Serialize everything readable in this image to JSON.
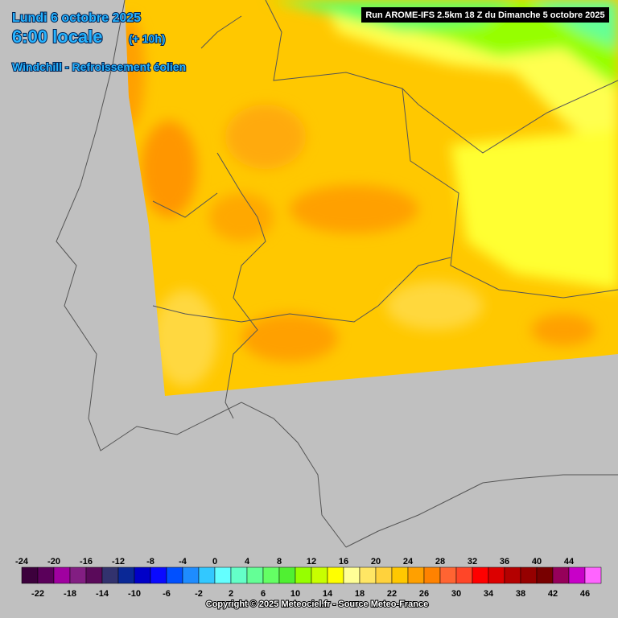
{
  "header": {
    "date": "Lundi 6 octobre 2025",
    "time": "6:00 locale",
    "lead": "(+ 10h)",
    "variable": "Windchill - Refroissement éolien",
    "run": "Run AROME-IFS 2.5km 18 Z du Dimanche 5 octobre 2025"
  },
  "legend": {
    "values": [
      -24,
      -22,
      -20,
      -18,
      -16,
      -14,
      -12,
      -10,
      -8,
      -6,
      -4,
      -2,
      0,
      2,
      4,
      6,
      8,
      10,
      12,
      14,
      16,
      18,
      20,
      22,
      24,
      26,
      28,
      30,
      32,
      34,
      36,
      38,
      40,
      42,
      44,
      46
    ],
    "colors": [
      "#3c003c",
      "#5a005a",
      "#a000a0",
      "#821e82",
      "#5a0a5a",
      "#32326e",
      "#0a2896",
      "#0000c8",
      "#0a0aff",
      "#0050ff",
      "#1e8cff",
      "#32c8ff",
      "#64ffff",
      "#64ffc8",
      "#64ff96",
      "#64ff64",
      "#50f032",
      "#96ff00",
      "#c8ff00",
      "#ffff00",
      "#ffff96",
      "#ffe664",
      "#ffd23c",
      "#ffc800",
      "#ffa000",
      "#ff8200",
      "#ff6432",
      "#ff4628",
      "#ff0000",
      "#dc0000",
      "#b40000",
      "#960000",
      "#780000",
      "#96005a",
      "#c800c8",
      "#ff64ff"
    ]
  },
  "footer": {
    "copyright": "Copyright © 2025 Meteociel.fr - Source Meteo-France"
  }
}
